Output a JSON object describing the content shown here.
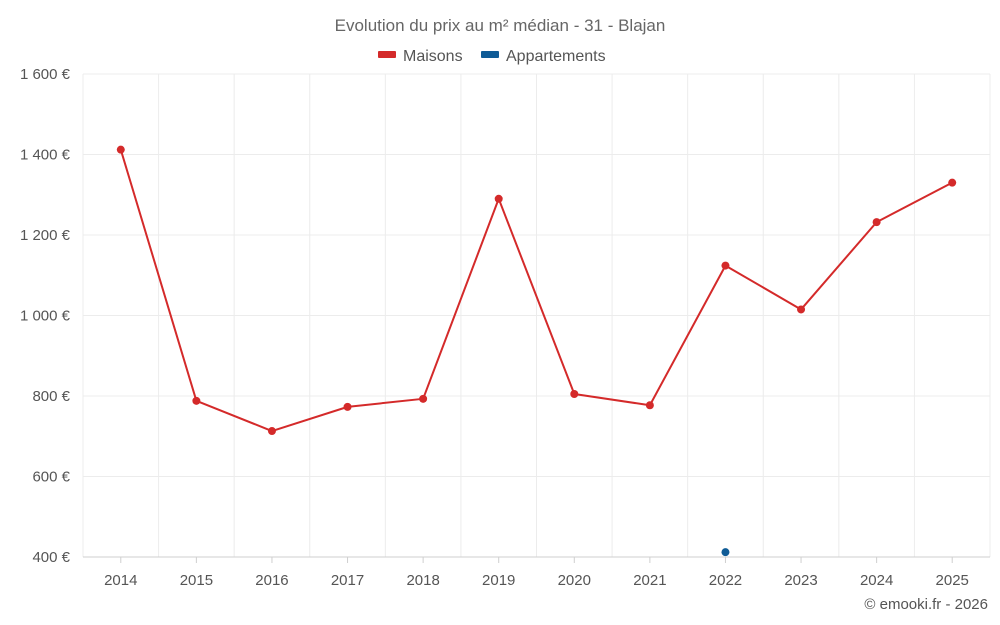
{
  "chart_data": {
    "type": "line",
    "title": "Evolution du prix au m² médian - 31 - Blajan",
    "categories": [
      "2014",
      "2015",
      "2016",
      "2017",
      "2018",
      "2019",
      "2020",
      "2021",
      "2022",
      "2023",
      "2024",
      "2025"
    ],
    "y_ticks": [
      "1 600 €",
      "1 400 €",
      "1 200 €",
      "1 000 €",
      "800 €",
      "600 €",
      "400 €"
    ],
    "y_tick_values": [
      1600,
      1400,
      1200,
      1000,
      800,
      600,
      400
    ],
    "ylim": [
      400,
      1600
    ],
    "grid": true,
    "legend_position": "top-center",
    "series": [
      {
        "name": "Maisons",
        "color": "#d42a2a",
        "values": [
          1412,
          788,
          713,
          773,
          793,
          1290,
          805,
          777,
          1124,
          1015,
          1232,
          1330
        ]
      },
      {
        "name": "Appartements",
        "color": "#0f5b96",
        "values": [
          null,
          null,
          null,
          null,
          null,
          null,
          null,
          null,
          412,
          null,
          null,
          null
        ]
      }
    ],
    "credit": "© emooki.fr - 2026"
  }
}
